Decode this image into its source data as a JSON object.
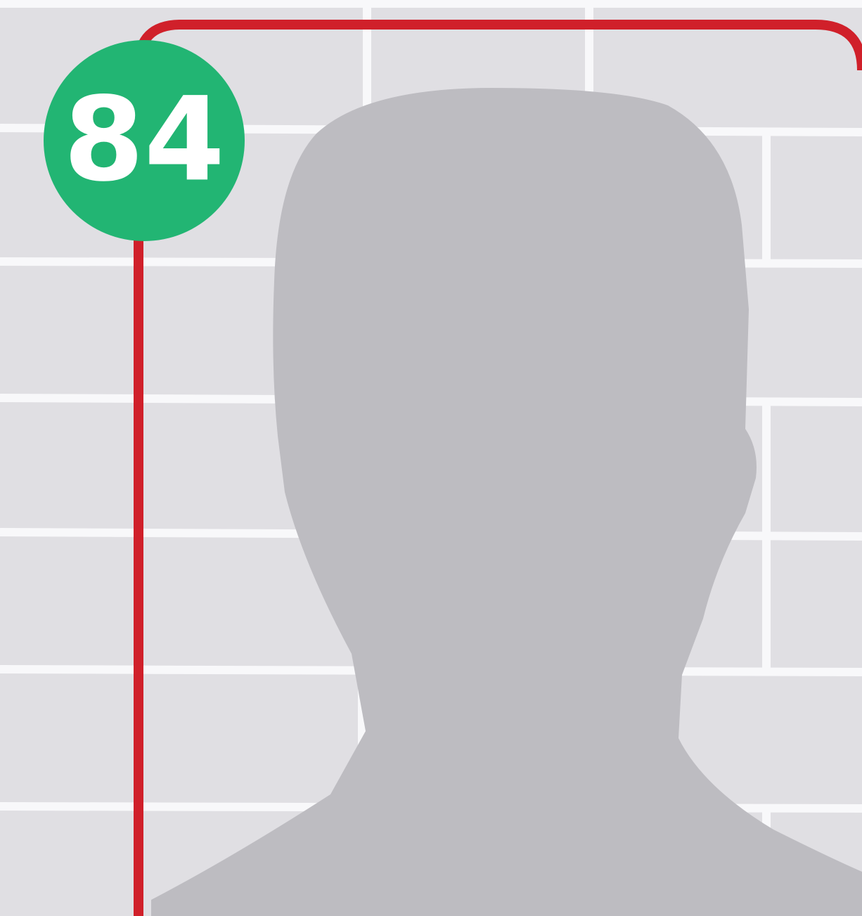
{
  "badge": {
    "label": "84"
  }
}
